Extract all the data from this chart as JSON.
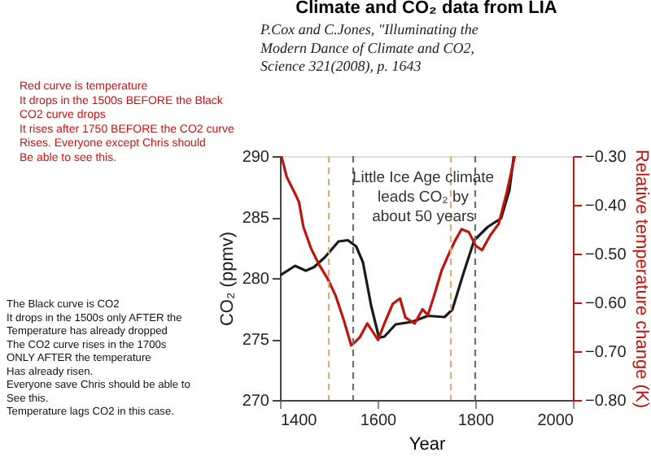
{
  "chart_data": {
    "type": "line",
    "title": "Climate and CO₂ data from LIA",
    "xlabel": "Year",
    "ylabel": "CO₂ (ppmv)",
    "y2label": "Relative temperature change (K)",
    "xlim": [
      1400,
      2000
    ],
    "xticks": [
      1400,
      1600,
      1800,
      2000
    ],
    "ylim": [
      270,
      290
    ],
    "yticks": [
      270,
      275,
      280,
      285,
      290
    ],
    "y2lim": [
      -0.8,
      -0.3
    ],
    "y2ticks": [
      {
        "value": -0.8,
        "label": "−0.80"
      },
      {
        "value": -0.7,
        "label": "−0.70"
      },
      {
        "value": -0.6,
        "label": "−0.60"
      },
      {
        "value": -0.5,
        "label": "−0.50"
      },
      {
        "value": -0.4,
        "label": "−0.40"
      },
      {
        "value": -0.3,
        "label": "−0.30"
      }
    ],
    "grid": false,
    "line_style": "solid",
    "marker": "none",
    "series": [
      {
        "color": "#1a1a1a",
        "x": [
          1400,
          1431,
          1453,
          1470,
          1492,
          1520,
          1539,
          1556,
          1570,
          1587,
          1603,
          1614,
          1637,
          1670,
          1703,
          1737,
          1753,
          1776,
          1798,
          1826,
          1853,
          1870,
          1879
        ],
        "values": [
          280.2,
          281.0,
          280.6,
          280.9,
          281.7,
          283.0,
          283.1,
          282.6,
          281.3,
          277.7,
          275.1,
          275.2,
          276.2,
          276.4,
          276.9,
          276.8,
          277.4,
          280.4,
          283.1,
          284.2,
          284.9,
          287.2,
          290
        ]
      },
      {
        "color": "#c0140f",
        "axis": "y2",
        "x": [
          1403,
          1414,
          1431,
          1439,
          1448,
          1464,
          1481,
          1498,
          1514,
          1531,
          1546,
          1553,
          1564,
          1579,
          1590,
          1601,
          1614,
          1631,
          1646,
          1657,
          1676,
          1692,
          1703,
          1714,
          1731,
          1748,
          1759,
          1772,
          1787,
          1801,
          1814,
          1831,
          1848,
          1864,
          1881
        ],
        "values": [
          -0.3,
          -0.343,
          -0.377,
          -0.394,
          -0.445,
          -0.49,
          -0.524,
          -0.552,
          -0.586,
          -0.637,
          -0.688,
          -0.682,
          -0.671,
          -0.643,
          -0.66,
          -0.677,
          -0.643,
          -0.603,
          -0.592,
          -0.631,
          -0.643,
          -0.614,
          -0.626,
          -0.592,
          -0.535,
          -0.496,
          -0.473,
          -0.45,
          -0.456,
          -0.484,
          -0.493,
          -0.462,
          -0.439,
          -0.377,
          -0.3
        ]
      }
    ],
    "ref_lines": [
      {
        "axis": "x",
        "value": 1500,
        "color": "#d9b26e",
        "line_style": "dashed"
      },
      {
        "axis": "x",
        "value": 1550,
        "color": "#6e6e6e",
        "line_style": "dashed"
      },
      {
        "axis": "x",
        "value": 1750,
        "color": "#d9b26e",
        "line_style": "dashed"
      },
      {
        "axis": "x",
        "value": 1800,
        "color": "#6e6e6e",
        "line_style": "dashed"
      }
    ],
    "annotations": [
      "P.Cox and C.Jones, \"Illuminating the\nModern Dance of Climate and CO2,\nScience 321(2008), p. 1643",
      "Red curve is temperature\nIt drops in the 1500s BEFORE the Black\nCO2 curve drops\nIt rises after 1750 BEFORE the CO2 curve\nRises.  Everyone except Chris should\nBe able to see this.",
      "The Black curve is CO2\nIt drops in the 1500s only AFTER the\nTemperature has already dropped\nThe CO2 curve rises in the 1700s\nONLY AFTER the temperature\nHas already risen.\nEveryone save Chris should be able to\nSee this.\nTemperature lags CO2 in this case.",
      "Little Ice Age climate\nleads CO₂ by\nabout 50 years"
    ]
  }
}
